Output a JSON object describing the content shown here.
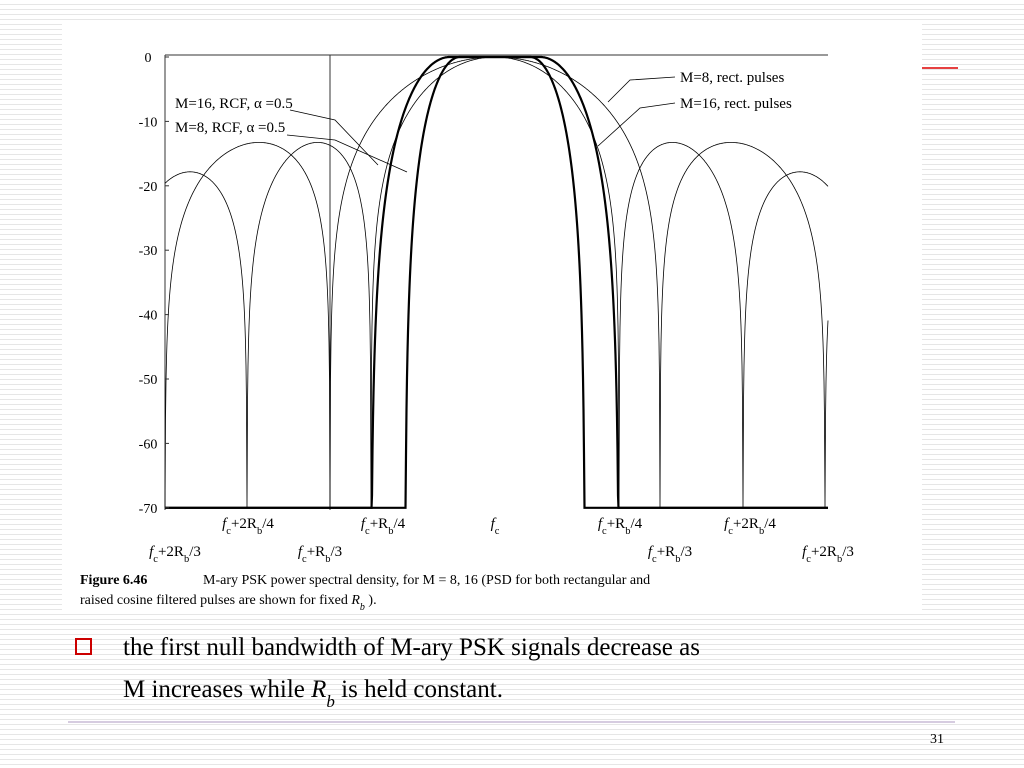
{
  "figure": {
    "yticks": [
      0,
      -10,
      -20,
      -30,
      -40,
      -50,
      -60,
      -70
    ],
    "xlabels_top": [
      [
        "f",
        "c",
        "+2R",
        "b",
        "/4"
      ],
      [
        "f",
        "c",
        "+R",
        "b",
        "/4"
      ],
      [
        "f",
        "c"
      ],
      [
        "f",
        "c",
        "+R",
        "b",
        "/4"
      ],
      [
        "f",
        "c",
        "+2R",
        "b",
        "/4"
      ]
    ],
    "xlabels_bottom": [
      [
        "f",
        "c",
        "+2R",
        "b",
        "/3"
      ],
      [
        "f",
        "c",
        "+R",
        "b",
        "/3"
      ],
      [
        "f",
        "c",
        "+R",
        "b",
        "/3"
      ],
      [
        "f",
        "c",
        "+2R",
        "b",
        "/3"
      ]
    ],
    "annotations": [
      "M=16, RCF, α =0.5",
      "M=8, RCF, α =0.5",
      "M=8, rect. pulses",
      "M=16, rect. pulses"
    ],
    "caption": {
      "label": "Figure 6.46",
      "line1": "M-ary PSK power spectral density, for M = 8, 16 (PSD for both rectangular and",
      "line2": [
        "raised cosine filtered pulses are shown for fixed ",
        "R",
        "b",
        " )."
      ]
    }
  },
  "bullet": {
    "line1": "the first null bandwidth of M-ary PSK signals decrease as",
    "line2": [
      "M increases while ",
      "R",
      "b",
      " is held constant."
    ]
  },
  "page_number": "31"
}
